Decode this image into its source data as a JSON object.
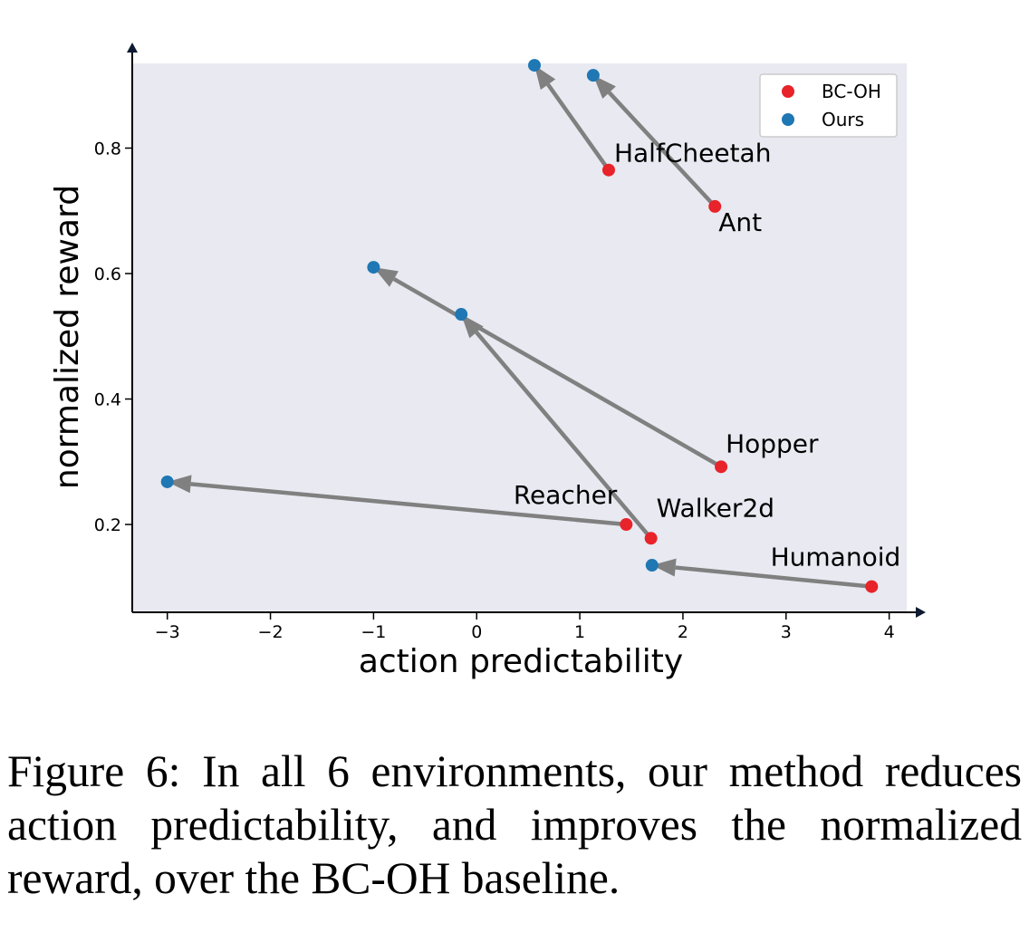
{
  "chart_data": {
    "type": "scatter",
    "xlabel": "action predictability",
    "ylabel": "normalized reward",
    "xlim": [
      -3.34,
      4.17
    ],
    "ylim": [
      0.06,
      0.935
    ],
    "grid": false,
    "background": "#e8e9f1",
    "legend_position": "top-right",
    "x_ticks": [
      -3,
      -2,
      -1,
      0,
      1,
      2,
      3,
      4
    ],
    "x_tick_labels": [
      "−3",
      "−2",
      "−1",
      "0",
      "1",
      "2",
      "3",
      "4"
    ],
    "y_ticks": [
      0.2,
      0.4,
      0.6,
      0.8
    ],
    "y_tick_labels": [
      "0.2",
      "0.4",
      "0.6",
      "0.8"
    ],
    "series": [
      {
        "name": "BC-OH",
        "color": "#e8232a",
        "points": [
          {
            "label": "HalfCheetah",
            "x": 1.28,
            "y": 0.765
          },
          {
            "label": "Ant",
            "x": 2.31,
            "y": 0.707
          },
          {
            "label": "Hopper",
            "x": 2.37,
            "y": 0.292
          },
          {
            "label": "Reacher",
            "x": 1.45,
            "y": 0.2
          },
          {
            "label": "Walker2d",
            "x": 1.69,
            "y": 0.178
          },
          {
            "label": "Humanoid",
            "x": 3.83,
            "y": 0.101
          }
        ]
      },
      {
        "name": "Ours",
        "color": "#1f77b4",
        "points": [
          {
            "label": "HalfCheetah",
            "x": 0.56,
            "y": 0.932
          },
          {
            "label": "Ant",
            "x": 1.13,
            "y": 0.916
          },
          {
            "label": "Hopper",
            "x": -1.0,
            "y": 0.61
          },
          {
            "label": "Reacher",
            "x": -3.0,
            "y": 0.268
          },
          {
            "label": "Walker2d",
            "x": -0.15,
            "y": 0.535
          },
          {
            "label": "Humanoid",
            "x": 1.7,
            "y": 0.135
          }
        ]
      }
    ],
    "point_labels": [
      {
        "text": "HalfCheetah",
        "x": 1.28,
        "y": 0.765
      },
      {
        "text": "Ant",
        "x": 2.31,
        "y": 0.707
      },
      {
        "text": "Hopper",
        "x": 2.37,
        "y": 0.292
      },
      {
        "text": "Reacher",
        "x": 1.45,
        "y": 0.2
      },
      {
        "text": "Walker2d",
        "x": 1.69,
        "y": 0.178
      },
      {
        "text": "Humanoid",
        "x": 3.83,
        "y": 0.101
      }
    ],
    "arrows": [
      {
        "from": [
          1.28,
          0.765
        ],
        "to": [
          0.56,
          0.932
        ]
      },
      {
        "from": [
          2.31,
          0.707
        ],
        "to": [
          1.13,
          0.916
        ]
      },
      {
        "from": [
          2.37,
          0.292
        ],
        "to": [
          -1.0,
          0.61
        ]
      },
      {
        "from": [
          1.45,
          0.2
        ],
        "to": [
          -3.0,
          0.268
        ]
      },
      {
        "from": [
          1.69,
          0.178
        ],
        "to": [
          -0.15,
          0.535
        ]
      },
      {
        "from": [
          3.83,
          0.101
        ],
        "to": [
          1.7,
          0.135
        ]
      }
    ],
    "arrow_color": "#808080"
  },
  "caption": "Figure 6: In all 6 environments, our method reduces action predictability, and improves the normalized reward, over the BC-OH baseline."
}
